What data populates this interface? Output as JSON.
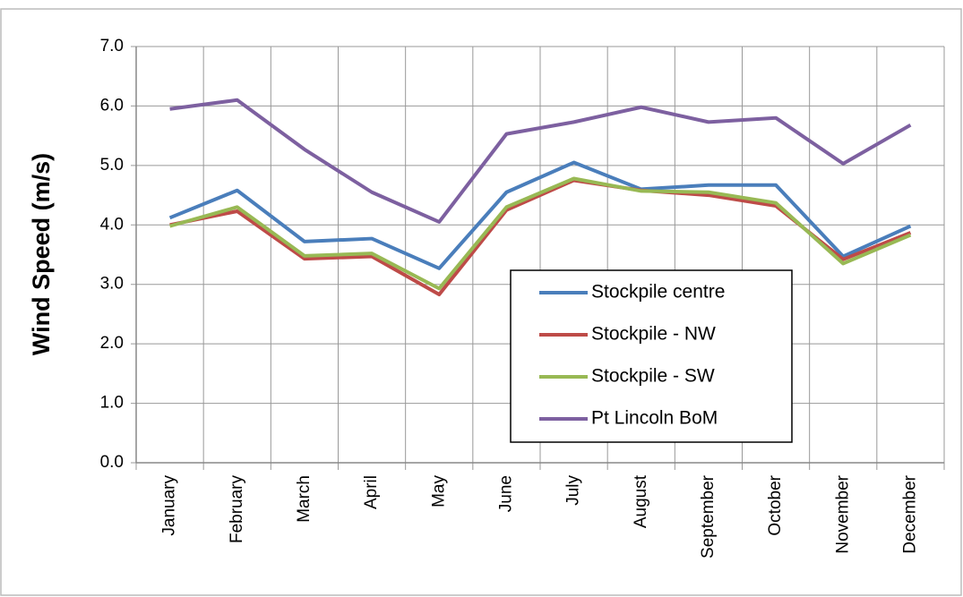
{
  "chart_data": {
    "type": "line",
    "y_label": "Wind Speed (m/s)",
    "categories": [
      "January",
      "February",
      "March",
      "April",
      "May",
      "June",
      "July",
      "August",
      "September",
      "October",
      "November",
      "December"
    ],
    "series": [
      {
        "name": "Stockpile centre",
        "color": "#4a7ebb",
        "values": [
          4.12,
          4.58,
          3.72,
          3.77,
          3.27,
          4.55,
          5.05,
          4.6,
          4.67,
          4.67,
          3.47,
          3.98
        ]
      },
      {
        "name": "Stockpile - NW",
        "color": "#be4b48",
        "values": [
          4.0,
          4.23,
          3.43,
          3.47,
          2.83,
          4.25,
          4.75,
          4.58,
          4.5,
          4.32,
          3.42,
          3.87
        ]
      },
      {
        "name": "Stockpile - SW",
        "color": "#98b954",
        "values": [
          3.98,
          4.3,
          3.48,
          3.52,
          2.93,
          4.3,
          4.78,
          4.57,
          4.55,
          4.37,
          3.35,
          3.83
        ]
      },
      {
        "name": "Pt Lincoln BoM",
        "color": "#7d60a0",
        "values": [
          5.95,
          6.1,
          5.27,
          4.55,
          4.05,
          5.53,
          5.73,
          5.98,
          5.73,
          5.8,
          5.03,
          5.68
        ]
      }
    ],
    "ylim": [
      0,
      7
    ],
    "yticks": [
      {
        "value": 0,
        "label": "0.0"
      },
      {
        "value": 1,
        "label": "1.0"
      },
      {
        "value": 2,
        "label": "2.0"
      },
      {
        "value": 3,
        "label": "3.0"
      },
      {
        "value": 4,
        "label": "4.0"
      },
      {
        "value": 5,
        "label": "5.0"
      },
      {
        "value": 6,
        "label": "6.0"
      },
      {
        "value": 7,
        "label": "7.0"
      }
    ],
    "grid": true,
    "legend": "center"
  }
}
